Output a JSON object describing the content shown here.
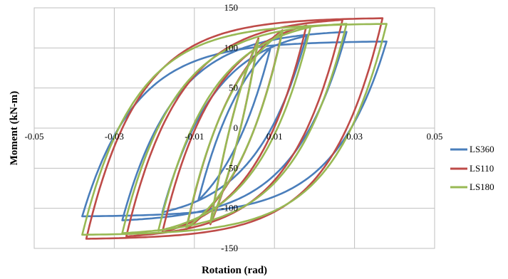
{
  "chart_data": {
    "type": "line",
    "title": "",
    "xlabel": "Rotation (rad)",
    "ylabel": "Moment (kN-m)",
    "xlim": [
      -0.05,
      0.05
    ],
    "ylim": [
      -150,
      150
    ],
    "x_ticks": [
      -0.05,
      -0.03,
      -0.01,
      0.01,
      0.03,
      0.05
    ],
    "x_tick_labels": [
      "-0.05",
      "-0.03",
      "-0.01",
      "0.01",
      "0.03",
      "0.05"
    ],
    "y_ticks": [
      -150,
      -100,
      -50,
      0,
      50,
      100,
      150
    ],
    "y_tick_labels": [
      "-150",
      "-100",
      "-50",
      "0",
      "50",
      "100",
      "150"
    ],
    "grid": true,
    "legend_position": "right",
    "series": [
      {
        "name": "LS360",
        "color": "#4a7ebb",
        "loops": [
          {
            "amp": 0.009,
            "Mmax": 100,
            "Mmin": -90
          },
          {
            "amp": 0.018,
            "Mmax": 115,
            "Mmin": -105
          },
          {
            "amp": 0.028,
            "Mmax": 120,
            "Mmin": -115
          },
          {
            "amp": 0.038,
            "Mmax": 108,
            "Mmin": -110
          }
        ]
      },
      {
        "name": "LS110",
        "color": "#be4b48",
        "loops": [
          {
            "amp": 0.006,
            "Mmax": 112,
            "Mmin": -120
          },
          {
            "amp": 0.012,
            "Mmax": 122,
            "Mmin": -126
          },
          {
            "amp": 0.018,
            "Mmax": 128,
            "Mmin": -130
          },
          {
            "amp": 0.027,
            "Mmax": 135,
            "Mmin": -135
          },
          {
            "amp": 0.037,
            "Mmax": 137,
            "Mmin": -138
          }
        ]
      },
      {
        "name": "LS180",
        "color": "#98b954",
        "loops": [
          {
            "amp": 0.006,
            "Mmax": 110,
            "Mmin": -118
          },
          {
            "amp": 0.012,
            "Mmax": 120,
            "Mmin": -124
          },
          {
            "amp": 0.019,
            "Mmax": 126,
            "Mmin": -128
          },
          {
            "amp": 0.028,
            "Mmax": 130,
            "Mmin": -131
          },
          {
            "amp": 0.038,
            "Mmax": 130,
            "Mmin": -133
          }
        ]
      }
    ]
  }
}
